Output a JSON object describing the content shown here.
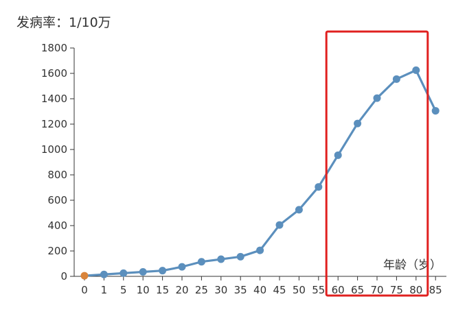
{
  "chart_data": {
    "type": "line",
    "ylabel": "发病率：1/10万",
    "xlabel": "年龄（岁）",
    "categories": [
      "0",
      "1",
      "5",
      "10",
      "15",
      "20",
      "25",
      "30",
      "35",
      "40",
      "45",
      "50",
      "55",
      "60",
      "65",
      "70",
      "75",
      "80",
      "85"
    ],
    "series": [
      {
        "values": [
          5,
          15,
          25,
          35,
          45,
          75,
          115,
          135,
          155,
          205,
          405,
          525,
          705,
          955,
          1205,
          1405,
          1555,
          1625,
          1305
        ],
        "color": "#5b8fbd",
        "first_point_color": "#d9843b"
      }
    ],
    "ylim": [
      0,
      1800
    ],
    "yticks": [
      0,
      200,
      400,
      600,
      800,
      1000,
      1200,
      1400,
      1600,
      1800
    ],
    "grid": false,
    "highlight_box": {
      "from_category": "60",
      "to_category": "80",
      "color": "#e0201f"
    }
  }
}
